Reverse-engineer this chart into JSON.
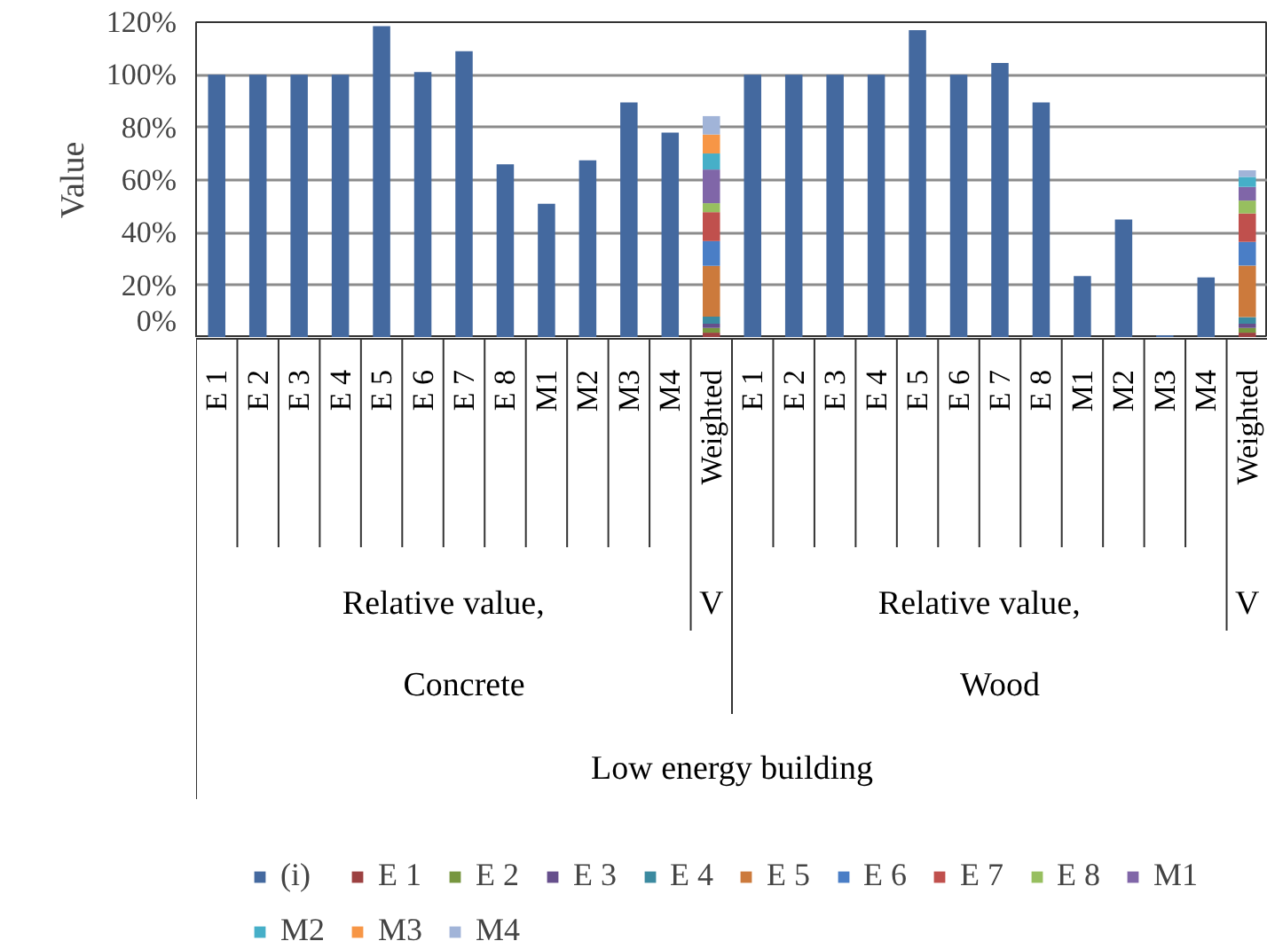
{
  "chart_data": {
    "type": "bar",
    "stacked": true,
    "ylabel": "Value",
    "ylim": [
      0,
      120
    ],
    "yticks": [
      {
        "value": 0,
        "label": "0%"
      },
      {
        "value": 20,
        "label": "20%"
      },
      {
        "value": 40,
        "label": "40%"
      },
      {
        "value": 60,
        "label": "60%"
      },
      {
        "value": 80,
        "label": "80%"
      },
      {
        "value": 100,
        "label": "100%"
      },
      {
        "value": 120,
        "label": "120%"
      }
    ],
    "grid": "y",
    "legend": "bottom",
    "categories": [
      "E 1",
      "E 2",
      "E 3",
      "E 4",
      "E 5",
      "E 6",
      "E 7",
      "E 8",
      "M1",
      "M2",
      "M3",
      "M4",
      "Weighted",
      "E 1",
      "E 2",
      "E 3",
      "E 4",
      "E 5",
      "E 6",
      "E 7",
      "E 8",
      "M1",
      "M2",
      "M3",
      "M4",
      "Weighted"
    ],
    "annotations": [
      "Relative value,",
      "V",
      "Relative value,",
      "V",
      "Concrete",
      "Wood",
      "Low energy building"
    ],
    "series": [
      {
        "name": "(i)",
        "color": "#44699f",
        "values": [
          100,
          100,
          100,
          100,
          118.5,
          101,
          109,
          66,
          51,
          67.5,
          89.5,
          78,
          null,
          100,
          100,
          100,
          100,
          117,
          100,
          104.5,
          89.5,
          23.5,
          45,
          1,
          23,
          null
        ]
      },
      {
        "name": "E 1",
        "color": "#9c4141",
        "values": [
          null,
          null,
          null,
          null,
          null,
          null,
          null,
          null,
          null,
          null,
          null,
          null,
          2,
          null,
          null,
          null,
          null,
          null,
          null,
          null,
          null,
          null,
          null,
          null,
          null,
          2
        ]
      },
      {
        "name": "E 2",
        "color": "#77963f",
        "values": [
          null,
          null,
          null,
          null,
          null,
          null,
          null,
          null,
          null,
          null,
          null,
          null,
          1.8,
          null,
          null,
          null,
          null,
          null,
          null,
          null,
          null,
          null,
          null,
          null,
          null,
          1.8
        ]
      },
      {
        "name": "E 3",
        "color": "#664f8c",
        "values": [
          null,
          null,
          null,
          null,
          null,
          null,
          null,
          null,
          null,
          null,
          null,
          null,
          1.6,
          null,
          null,
          null,
          null,
          null,
          null,
          null,
          null,
          null,
          null,
          null,
          null,
          1.6
        ]
      },
      {
        "name": "E 4",
        "color": "#3b8aa0",
        "values": [
          null,
          null,
          null,
          null,
          null,
          null,
          null,
          null,
          null,
          null,
          null,
          null,
          2.7,
          null,
          null,
          null,
          null,
          null,
          null,
          null,
          null,
          null,
          null,
          null,
          null,
          2.5
        ]
      },
      {
        "name": "E 5",
        "color": "#cc7a3c",
        "values": [
          null,
          null,
          null,
          null,
          null,
          null,
          null,
          null,
          null,
          null,
          null,
          null,
          19.3,
          null,
          null,
          null,
          null,
          null,
          null,
          null,
          null,
          null,
          null,
          null,
          null,
          19.6
        ]
      },
      {
        "name": "E 6",
        "color": "#4a7ec6",
        "values": [
          null,
          null,
          null,
          null,
          null,
          null,
          null,
          null,
          null,
          null,
          null,
          null,
          9.4,
          null,
          null,
          null,
          null,
          null,
          null,
          null,
          null,
          null,
          null,
          null,
          null,
          9
        ]
      },
      {
        "name": "E 7",
        "color": "#c0504d",
        "values": [
          null,
          null,
          null,
          null,
          null,
          null,
          null,
          null,
          null,
          null,
          null,
          null,
          11,
          null,
          null,
          null,
          null,
          null,
          null,
          null,
          null,
          null,
          null,
          null,
          null,
          10.8
        ]
      },
      {
        "name": "E 8",
        "color": "#97bf5f",
        "values": [
          null,
          null,
          null,
          null,
          null,
          null,
          null,
          null,
          null,
          null,
          null,
          null,
          3.4,
          null,
          null,
          null,
          null,
          null,
          null,
          null,
          null,
          null,
          null,
          null,
          null,
          4.9
        ]
      },
      {
        "name": "M1",
        "color": "#8066a8",
        "values": [
          null,
          null,
          null,
          null,
          null,
          null,
          null,
          null,
          null,
          null,
          null,
          null,
          12.8,
          null,
          null,
          null,
          null,
          null,
          null,
          null,
          null,
          null,
          null,
          null,
          null,
          5.2
        ]
      },
      {
        "name": "M2",
        "color": "#46afc8",
        "values": [
          null,
          null,
          null,
          null,
          null,
          null,
          null,
          null,
          null,
          null,
          null,
          null,
          6.1,
          null,
          null,
          null,
          null,
          null,
          null,
          null,
          null,
          null,
          null,
          null,
          null,
          3.8
        ]
      },
      {
        "name": "M3",
        "color": "#f79646",
        "values": [
          null,
          null,
          null,
          null,
          null,
          null,
          null,
          null,
          null,
          null,
          null,
          null,
          7.2,
          null,
          null,
          null,
          null,
          null,
          null,
          null,
          null,
          null,
          null,
          null,
          null,
          null
        ]
      },
      {
        "name": "M4",
        "color": "#a1b4d8",
        "values": [
          null,
          null,
          null,
          null,
          null,
          null,
          null,
          null,
          null,
          null,
          null,
          null,
          7,
          null,
          null,
          null,
          null,
          null,
          null,
          null,
          null,
          null,
          null,
          null,
          null,
          2.5
        ]
      }
    ]
  }
}
